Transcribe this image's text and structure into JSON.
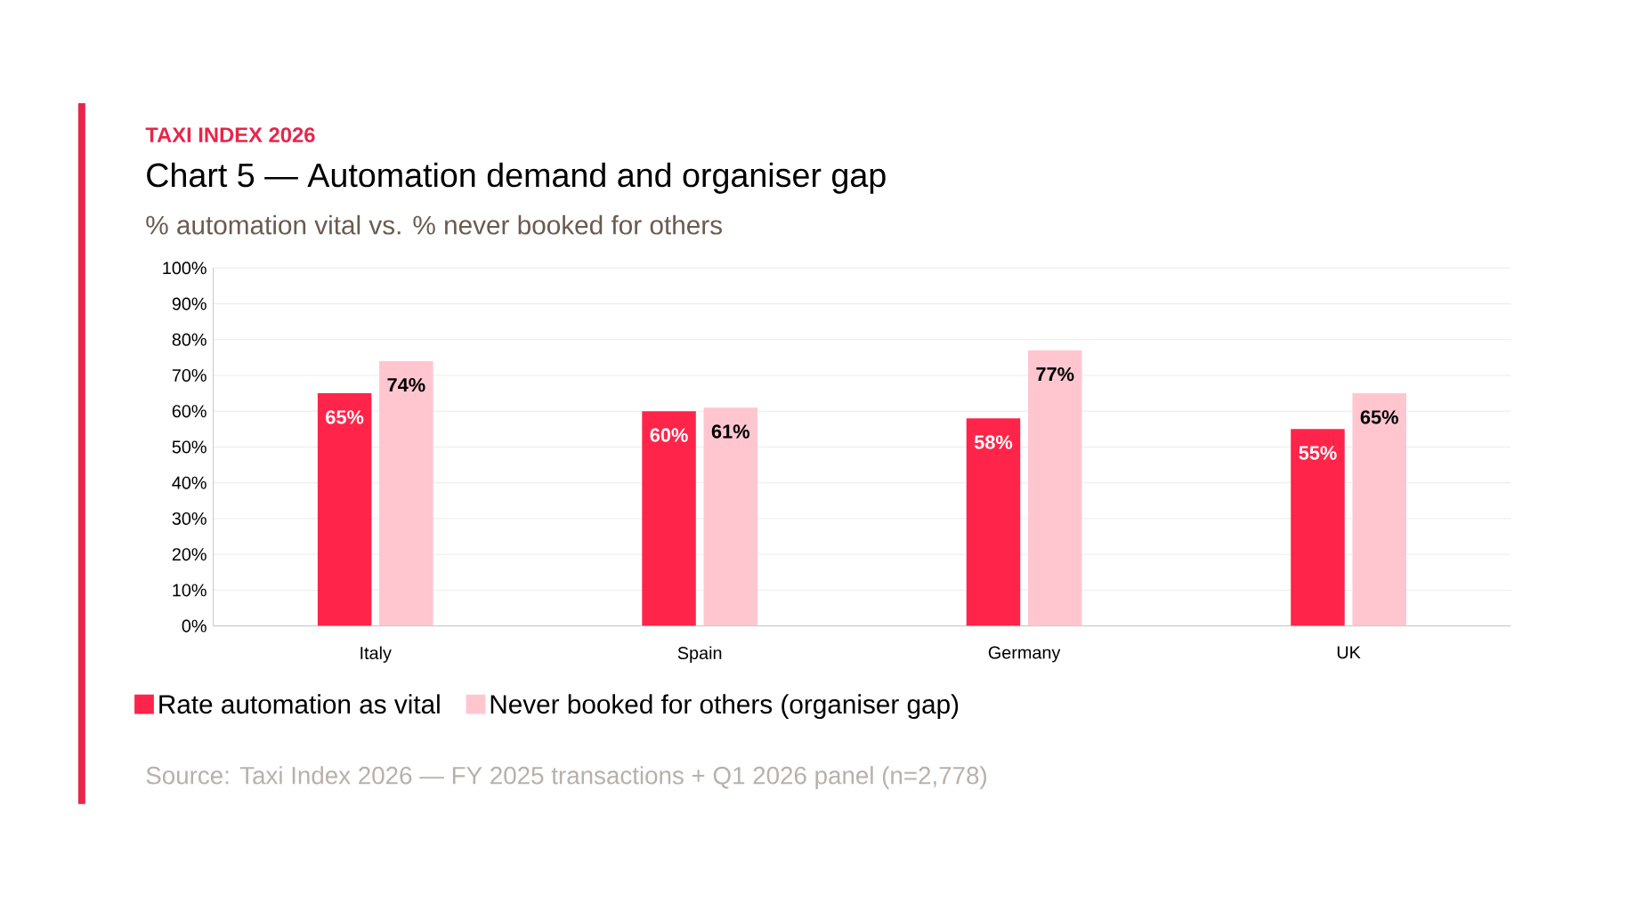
{
  "chart_data": {
    "type": "bar",
    "title": "TAXI INDEX 2026",
    "subtitle": "Chart 5 — Automation demand and organiser gap",
    "ylabel": "% automation vital vs. % never booked for others",
    "categories": [
      "Italy",
      "Spain",
      "Germany",
      "UK"
    ],
    "series": [
      {
        "name": "Rate automation as vital",
        "color": "#ff2449",
        "values": [
          65,
          60,
          58,
          55
        ],
        "value_labels": [
          "65%",
          "60%",
          "58%",
          "55%"
        ]
      },
      {
        "name": "Never booked for others (organiser gap)",
        "color": "#ffc6d0",
        "values": [
          74,
          61,
          77,
          65
        ],
        "value_labels": [
          "74%",
          "61%",
          "77%",
          "65%"
        ]
      }
    ],
    "ylim": [
      0,
      100
    ],
    "yticks": [
      {
        "value": 0,
        "label": "0%"
      },
      {
        "value": 10,
        "label": "10%"
      },
      {
        "value": 20,
        "label": "20%"
      },
      {
        "value": 30,
        "label": "30%"
      },
      {
        "value": 40,
        "label": "40%"
      },
      {
        "value": 50,
        "label": "50%"
      },
      {
        "value": 60,
        "label": "60%"
      },
      {
        "value": 70,
        "label": "70%"
      },
      {
        "value": 80,
        "label": "80%"
      },
      {
        "value": 90,
        "label": "90%"
      },
      {
        "value": 100,
        "label": "100%"
      }
    ],
    "grid": "y",
    "legend": "bottom",
    "annotations": [
      "Source: Taxi Index 2026 — FY 2025 transactions + Q1 2026 panel (n=2,778)"
    ]
  }
}
